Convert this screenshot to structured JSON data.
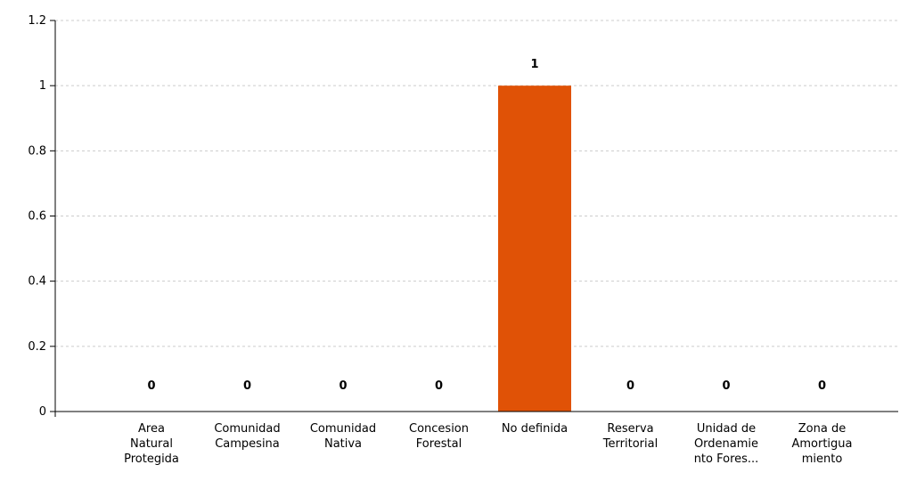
{
  "chart_data": {
    "type": "bar",
    "categories": [
      [
        "Area",
        "Natural",
        "Protegida"
      ],
      [
        "Comunidad",
        "Campesina"
      ],
      [
        "Comunidad",
        "Nativa"
      ],
      [
        "Concesion",
        "Forestal"
      ],
      [
        "No definida"
      ],
      [
        "Reserva",
        "Territorial"
      ],
      [
        "Unidad de",
        "Ordenamie",
        "nto Fores..."
      ],
      [
        "Zona de",
        "Amortigua",
        "miento"
      ]
    ],
    "values": [
      0,
      0,
      0,
      0,
      1,
      0,
      0,
      0
    ],
    "data_labels": [
      "0",
      "0",
      "0",
      "0",
      "1",
      "0",
      "0",
      "0"
    ],
    "ylim": [
      0,
      1.2
    ],
    "yticks": [
      0,
      0.2,
      0.4,
      0.6,
      0.8,
      1,
      1.2
    ],
    "ytick_labels": [
      "0",
      "0.2",
      "0.4",
      "0.6",
      "0.8",
      "1",
      "1.2"
    ],
    "grid": true,
    "legend": "none",
    "bar_color": "#e05206",
    "grid_color": "#cccccc",
    "axis_color": "#000000"
  }
}
